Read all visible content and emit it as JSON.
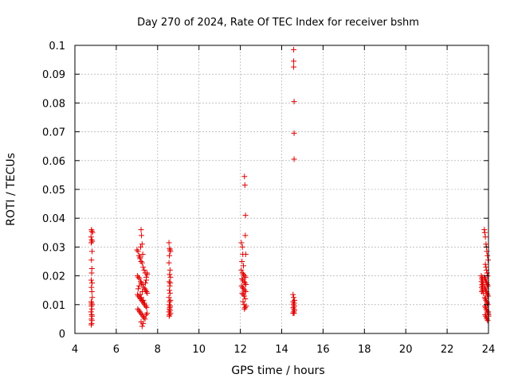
{
  "chart_data": {
    "type": "scatter",
    "title": "Day 270 of 2024, Rate Of TEC Index for receiver bshm",
    "xlabel": "GPS time / hours",
    "ylabel": "ROTI / TECUs",
    "xlim": [
      4,
      24
    ],
    "ylim": [
      0,
      0.1
    ],
    "xticks": [
      "4",
      "6",
      "8",
      "10",
      "12",
      "14",
      "16",
      "18",
      "20",
      "22",
      "24"
    ],
    "yticks": [
      "0",
      "0.01",
      "0.02",
      "0.03",
      "0.04",
      "0.05",
      "0.06",
      "0.07",
      "0.08",
      "0.09",
      "0.1"
    ],
    "grid": true,
    "marker": "+",
    "color": "#e00000",
    "series": [
      {
        "points": [
          [
            4.8,
            0.036
          ],
          [
            4.82,
            0.0355
          ],
          [
            4.85,
            0.035
          ],
          [
            4.78,
            0.0335
          ],
          [
            4.81,
            0.0325
          ],
          [
            4.84,
            0.032
          ],
          [
            4.79,
            0.0315
          ],
          [
            4.83,
            0.0285
          ],
          [
            4.8,
            0.0255
          ],
          [
            4.82,
            0.0225
          ],
          [
            4.81,
            0.021
          ],
          [
            4.79,
            0.0185
          ],
          [
            4.83,
            0.0175
          ],
          [
            4.8,
            0.016
          ],
          [
            4.82,
            0.0145
          ],
          [
            4.84,
            0.0125
          ],
          [
            4.79,
            0.011
          ],
          [
            4.81,
            0.0105
          ],
          [
            4.83,
            0.01
          ],
          [
            4.8,
            0.0095
          ],
          [
            4.82,
            0.0085
          ],
          [
            4.78,
            0.0075
          ],
          [
            4.81,
            0.0065
          ],
          [
            4.83,
            0.006
          ],
          [
            4.8,
            0.005
          ],
          [
            4.82,
            0.0045
          ],
          [
            4.81,
            0.0035
          ],
          [
            4.79,
            0.003
          ],
          [
            7.0,
            0.029
          ],
          [
            7.05,
            0.0285
          ],
          [
            7.1,
            0.027
          ],
          [
            7.15,
            0.026
          ],
          [
            7.2,
            0.025
          ],
          [
            7.25,
            0.0245
          ],
          [
            7.3,
            0.023
          ],
          [
            7.35,
            0.022
          ],
          [
            7.4,
            0.021
          ],
          [
            7.02,
            0.02
          ],
          [
            7.08,
            0.0195
          ],
          [
            7.12,
            0.019
          ],
          [
            7.18,
            0.018
          ],
          [
            7.22,
            0.0175
          ],
          [
            7.28,
            0.017
          ],
          [
            7.32,
            0.016
          ],
          [
            7.38,
            0.0155
          ],
          [
            7.42,
            0.015
          ],
          [
            7.46,
            0.0145
          ],
          [
            7.5,
            0.014
          ],
          [
            7.03,
            0.0135
          ],
          [
            7.07,
            0.013
          ],
          [
            7.13,
            0.0125
          ],
          [
            7.17,
            0.012
          ],
          [
            7.23,
            0.0115
          ],
          [
            7.27,
            0.011
          ],
          [
            7.33,
            0.0105
          ],
          [
            7.37,
            0.01
          ],
          [
            7.43,
            0.0095
          ],
          [
            7.47,
            0.009
          ],
          [
            7.04,
            0.0085
          ],
          [
            7.09,
            0.008
          ],
          [
            7.14,
            0.0075
          ],
          [
            7.19,
            0.007
          ],
          [
            7.24,
            0.0065
          ],
          [
            7.29,
            0.006
          ],
          [
            7.34,
            0.0055
          ],
          [
            7.39,
            0.005
          ],
          [
            7.44,
            0.0065
          ],
          [
            7.49,
            0.007
          ],
          [
            7.06,
            0.0155
          ],
          [
            7.11,
            0.0165
          ],
          [
            7.16,
            0.0135
          ],
          [
            7.21,
            0.0125
          ],
          [
            7.26,
            0.0145
          ],
          [
            7.31,
            0.0115
          ],
          [
            7.36,
            0.0105
          ],
          [
            7.41,
            0.0175
          ],
          [
            7.45,
            0.0185
          ],
          [
            7.2,
            0.036
          ],
          [
            7.22,
            0.034
          ],
          [
            7.25,
            0.031
          ],
          [
            7.18,
            0.03
          ],
          [
            7.28,
            0.0275
          ],
          [
            7.15,
            0.0265
          ],
          [
            7.2,
            0.004
          ],
          [
            7.25,
            0.0025
          ],
          [
            7.3,
            0.0035
          ],
          [
            7.48,
            0.021
          ],
          [
            7.5,
            0.0205
          ],
          [
            7.45,
            0.0195
          ],
          [
            8.55,
            0.0315
          ],
          [
            8.58,
            0.0295
          ],
          [
            8.6,
            0.029
          ],
          [
            8.62,
            0.0285
          ],
          [
            8.57,
            0.027
          ],
          [
            8.55,
            0.0245
          ],
          [
            8.6,
            0.022
          ],
          [
            8.58,
            0.0205
          ],
          [
            8.62,
            0.0195
          ],
          [
            8.56,
            0.018
          ],
          [
            8.61,
            0.0175
          ],
          [
            8.59,
            0.0165
          ],
          [
            8.57,
            0.015
          ],
          [
            8.6,
            0.014
          ],
          [
            8.55,
            0.0125
          ],
          [
            8.62,
            0.0115
          ],
          [
            8.58,
            0.011
          ],
          [
            8.56,
            0.01
          ],
          [
            8.61,
            0.0095
          ],
          [
            8.59,
            0.009
          ],
          [
            8.57,
            0.0085
          ],
          [
            8.6,
            0.008
          ],
          [
            8.55,
            0.0075
          ],
          [
            8.62,
            0.007
          ],
          [
            8.58,
            0.0065
          ],
          [
            8.56,
            0.006
          ],
          [
            12.05,
            0.0315
          ],
          [
            12.1,
            0.03
          ],
          [
            12.12,
            0.0275
          ],
          [
            12.08,
            0.025
          ],
          [
            12.15,
            0.0235
          ],
          [
            12.2,
            0.0545
          ],
          [
            12.22,
            0.0515
          ],
          [
            12.25,
            0.041
          ],
          [
            12.24,
            0.034
          ],
          [
            12.26,
            0.0275
          ],
          [
            12.05,
            0.022
          ],
          [
            12.1,
            0.021
          ],
          [
            12.15,
            0.0205
          ],
          [
            12.2,
            0.02
          ],
          [
            12.25,
            0.0195
          ],
          [
            12.08,
            0.019
          ],
          [
            12.12,
            0.0185
          ],
          [
            12.18,
            0.018
          ],
          [
            12.22,
            0.0175
          ],
          [
            12.27,
            0.017
          ],
          [
            12.06,
            0.0165
          ],
          [
            12.11,
            0.016
          ],
          [
            12.16,
            0.0155
          ],
          [
            12.21,
            0.015
          ],
          [
            12.26,
            0.0145
          ],
          [
            12.09,
            0.014
          ],
          [
            12.14,
            0.0135
          ],
          [
            12.19,
            0.013
          ],
          [
            12.24,
            0.012
          ],
          [
            12.13,
            0.011
          ],
          [
            12.18,
            0.01
          ],
          [
            12.23,
            0.009
          ],
          [
            12.28,
            0.0095
          ],
          [
            12.2,
            0.0085
          ],
          [
            14.58,
            0.0985
          ],
          [
            14.58,
            0.0945
          ],
          [
            14.58,
            0.0925
          ],
          [
            14.6,
            0.0805
          ],
          [
            14.6,
            0.0695
          ],
          [
            14.6,
            0.0605
          ],
          [
            14.55,
            0.0135
          ],
          [
            14.58,
            0.0125
          ],
          [
            14.62,
            0.0115
          ],
          [
            14.55,
            0.011
          ],
          [
            14.6,
            0.0105
          ],
          [
            14.57,
            0.01
          ],
          [
            14.61,
            0.0095
          ],
          [
            14.56,
            0.009
          ],
          [
            14.59,
            0.0085
          ],
          [
            14.62,
            0.008
          ],
          [
            14.58,
            0.0075
          ],
          [
            14.55,
            0.007
          ],
          [
            14.6,
            0.007
          ],
          [
            23.65,
            0.02
          ],
          [
            23.7,
            0.0195
          ],
          [
            23.68,
            0.019
          ],
          [
            23.72,
            0.0185
          ],
          [
            23.66,
            0.018
          ],
          [
            23.74,
            0.0175
          ],
          [
            23.69,
            0.017
          ],
          [
            23.71,
            0.0165
          ],
          [
            23.67,
            0.016
          ],
          [
            23.73,
            0.0155
          ],
          [
            23.7,
            0.015
          ],
          [
            23.68,
            0.0145
          ],
          [
            23.75,
            0.014
          ],
          [
            23.8,
            0.036
          ],
          [
            23.82,
            0.035
          ],
          [
            23.85,
            0.0335
          ],
          [
            23.88,
            0.031
          ],
          [
            23.9,
            0.03
          ],
          [
            23.92,
            0.0285
          ],
          [
            23.95,
            0.027
          ],
          [
            23.98,
            0.0255
          ],
          [
            23.85,
            0.024
          ],
          [
            23.88,
            0.023
          ],
          [
            23.9,
            0.022
          ],
          [
            23.93,
            0.021
          ],
          [
            23.96,
            0.02
          ],
          [
            23.8,
            0.0195
          ],
          [
            23.83,
            0.019
          ],
          [
            23.86,
            0.0185
          ],
          [
            23.89,
            0.018
          ],
          [
            23.91,
            0.0175
          ],
          [
            23.94,
            0.017
          ],
          [
            23.97,
            0.0165
          ],
          [
            23.81,
            0.016
          ],
          [
            23.84,
            0.0155
          ],
          [
            23.87,
            0.015
          ],
          [
            23.9,
            0.0145
          ],
          [
            23.92,
            0.014
          ],
          [
            23.95,
            0.0135
          ],
          [
            23.98,
            0.013
          ],
          [
            23.82,
            0.0125
          ],
          [
            23.85,
            0.012
          ],
          [
            23.88,
            0.0115
          ],
          [
            23.91,
            0.011
          ],
          [
            23.94,
            0.0105
          ],
          [
            23.97,
            0.01
          ],
          [
            23.83,
            0.0095
          ],
          [
            23.86,
            0.009
          ],
          [
            23.89,
            0.0085
          ],
          [
            23.92,
            0.008
          ],
          [
            23.95,
            0.0075
          ],
          [
            23.98,
            0.007
          ],
          [
            23.84,
            0.0065
          ],
          [
            23.87,
            0.006
          ],
          [
            23.9,
            0.0055
          ],
          [
            23.93,
            0.005
          ],
          [
            23.96,
            0.0045
          ],
          [
            24.0,
            0.006
          ],
          [
            24.0,
            0.0065
          ],
          [
            23.99,
            0.0075
          ]
        ]
      }
    ]
  }
}
